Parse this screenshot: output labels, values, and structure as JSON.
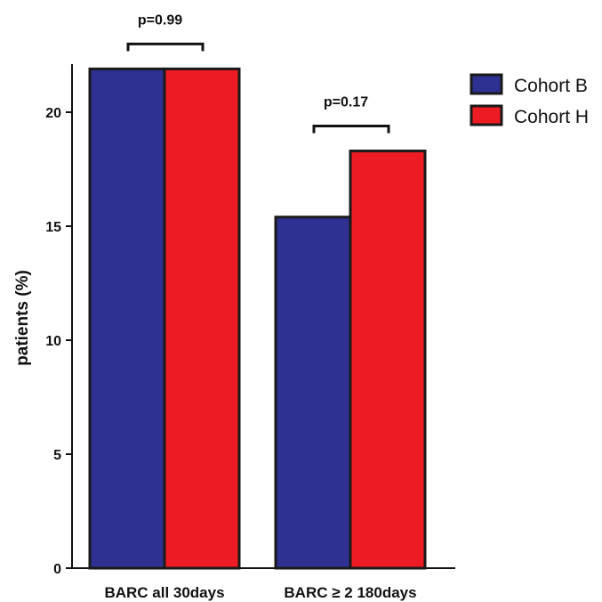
{
  "chart_data": {
    "type": "bar",
    "categories": [
      "BARC all 30days",
      "BARC ≥ 2 180days"
    ],
    "series": [
      {
        "name": "Cohort B",
        "values": [
          21.9,
          15.4
        ],
        "color": "#2e3192"
      },
      {
        "name": "Cohort H",
        "values": [
          21.9,
          18.3
        ],
        "color": "#ed1c24"
      }
    ],
    "ylabel": "patients (%)",
    "ylim": [
      0,
      22
    ],
    "yticks": [
      0,
      5,
      10,
      15,
      20
    ],
    "grid": false,
    "legend_position": "top-right",
    "annotations": [
      {
        "text": "p=0.99",
        "category_index": 0
      },
      {
        "text": "p=0.17",
        "category_index": 1
      }
    ]
  }
}
